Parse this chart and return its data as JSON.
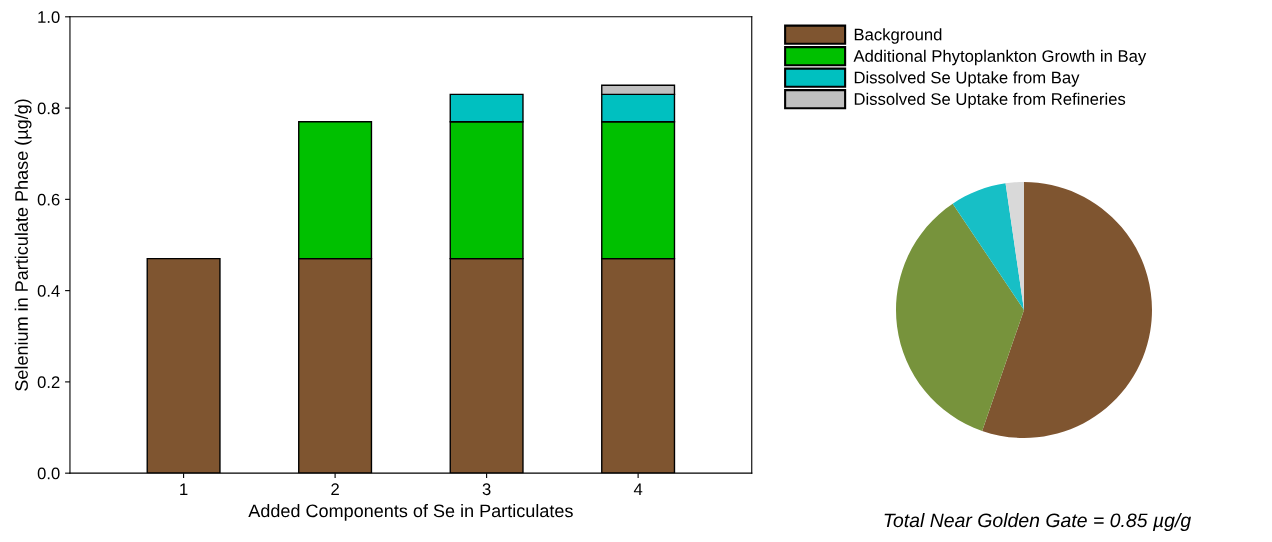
{
  "chart_data": [
    {
      "type": "bar",
      "stacked": true,
      "xlabel": "Added Components of Se in Particulates",
      "ylabel": "Selenium in Particulate Phase (µg/g)",
      "categories": [
        "1",
        "2",
        "3",
        "4"
      ],
      "series": [
        {
          "name": "Background",
          "color": "#7f5530",
          "values": [
            0.47,
            0.47,
            0.47,
            0.47
          ]
        },
        {
          "name": "Additional Phytoplankton Growth in Bay",
          "color": "#00c000",
          "values": [
            null,
            0.3,
            0.3,
            0.3
          ]
        },
        {
          "name": "Dissolved Se Uptake from Bay",
          "color": "#00c0c0",
          "values": [
            null,
            null,
            0.06,
            0.06
          ]
        },
        {
          "name": "Dissolved Se Uptake from Refineries",
          "color": "#c0c0c0",
          "values": [
            null,
            null,
            null,
            0.02
          ]
        }
      ],
      "ylim": [
        0,
        1.0
      ],
      "yticks": [
        {
          "value": 0,
          "label": "0.0"
        },
        0.2,
        0.4,
        0.6,
        0.8,
        {
          "value": 1.0,
          "label": "1.0"
        }
      ],
      "grid": false,
      "legend": "right"
    },
    {
      "type": "pie",
      "categories": [
        null,
        null,
        null,
        null
      ],
      "values": [
        55.3,
        35.3,
        7.1,
        2.3
      ],
      "colors": [
        "#7f5530",
        "#77933c",
        "#17bfc6",
        "#d9d9d9"
      ],
      "annotations": [
        "Total Near Golden Gate = 0.85 µg/g"
      ]
    }
  ]
}
